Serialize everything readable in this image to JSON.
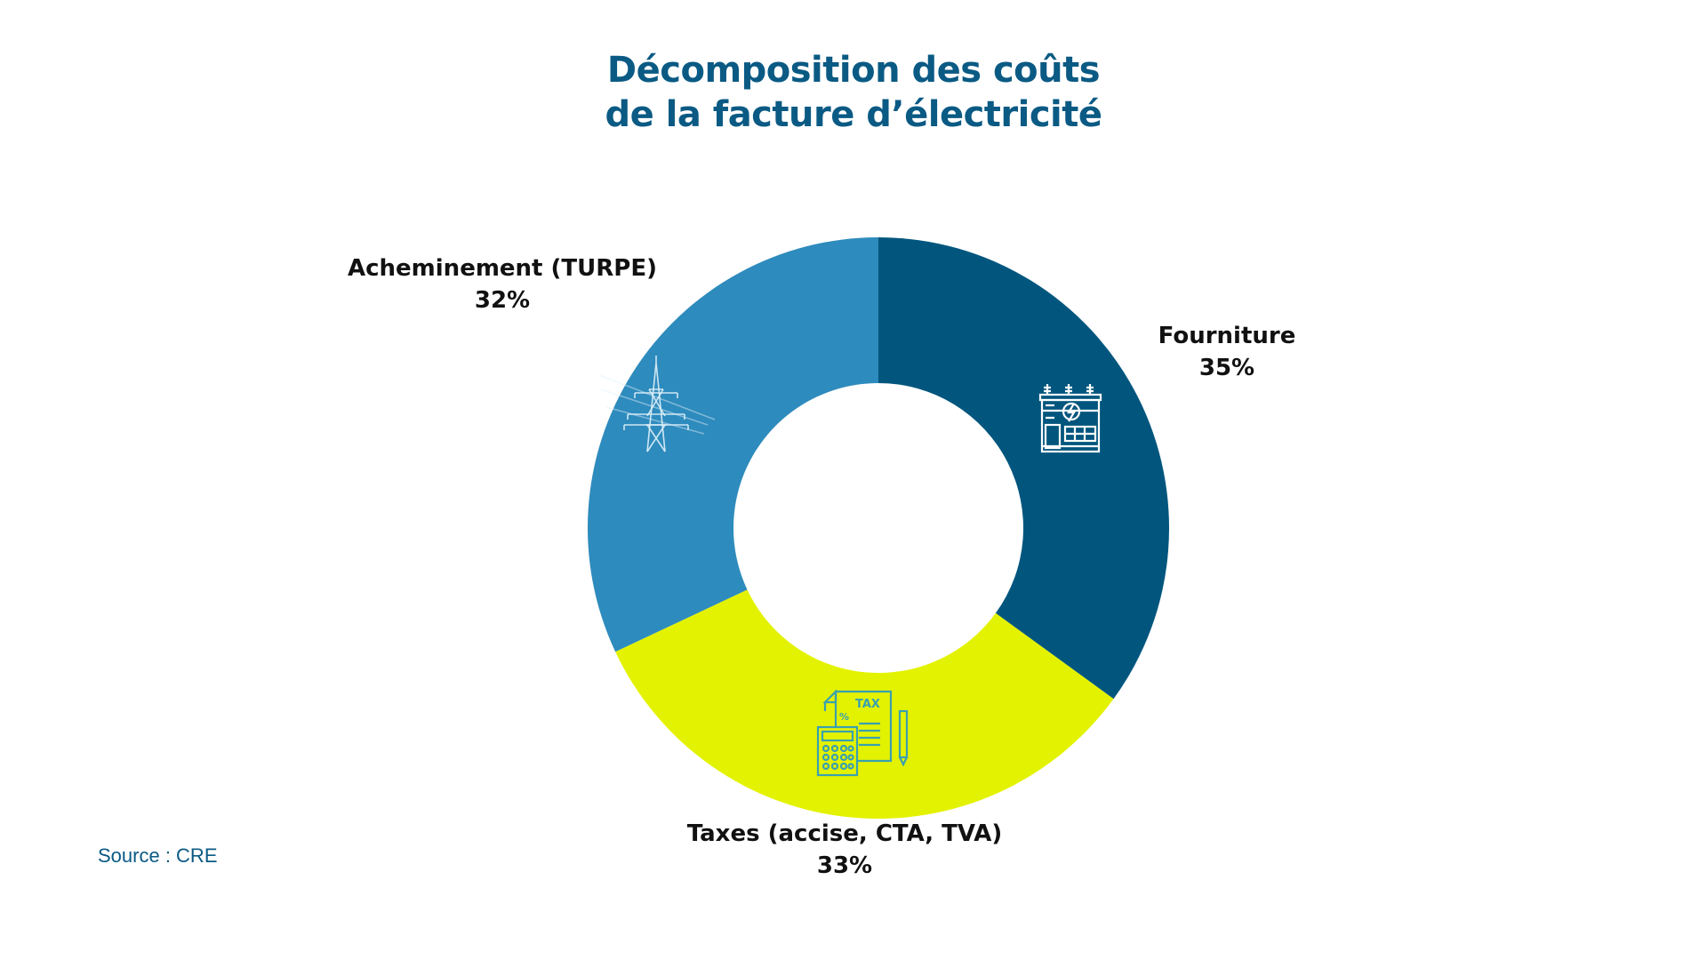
{
  "title": {
    "line1": "Décomposition des coûts",
    "line2": "de la facture d’électricité"
  },
  "source": "Source : CRE",
  "chart_data": {
    "type": "pie",
    "donut": true,
    "title": "Décomposition des coûts de la facture d’électricité",
    "categories": [
      "Fourniture",
      "Taxes (accise, CTA, TVA)",
      "Acheminement (TURPE)"
    ],
    "values": [
      35,
      33,
      32
    ],
    "value_labels": [
      "35%",
      "33%",
      "32%"
    ],
    "unit": "%",
    "colors": [
      "#02567e",
      "#e3f200",
      "#2e8bbd"
    ],
    "icons": [
      "electrical-substation-icon",
      "tax-calculator-icon",
      "power-pylon-icon"
    ],
    "legend": "none"
  }
}
